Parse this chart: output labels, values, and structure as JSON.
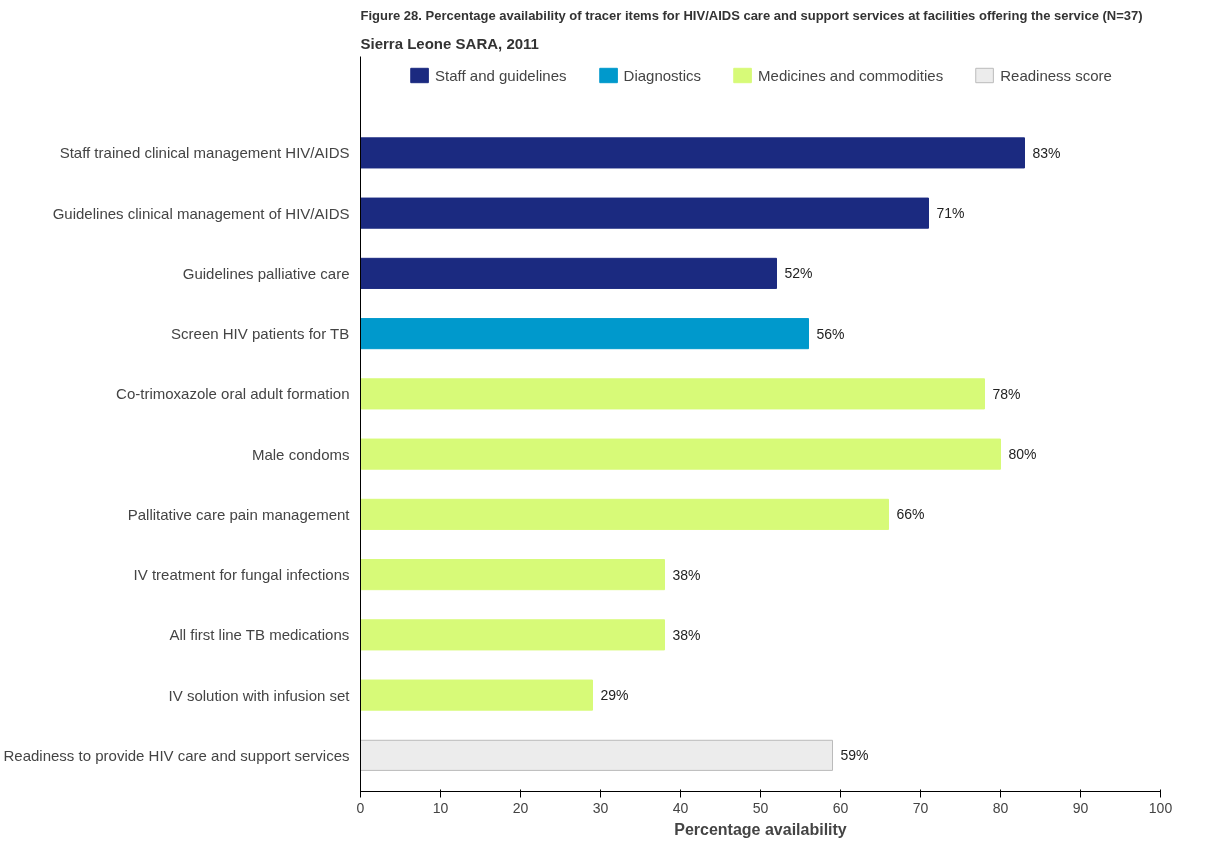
{
  "chart_data": {
    "type": "bar",
    "orientation": "horizontal",
    "title": "Figure 28.   Percentage availability of tracer items for HIV/AIDS care and support services at facilities offering the service (N=37)",
    "subtitle": "Sierra Leone SARA, 2011",
    "xlabel": "Percentage availability",
    "categories": [
      "Staff trained clinical management HIV/AIDS",
      "Guidelines clinical management of HIV/AIDS",
      "Guidelines palliative care",
      "Screen HIV patients for TB",
      "Co-trimoxazole oral adult formation",
      "Male condoms",
      "Pallitative care pain management",
      "IV treatment for fungal infections",
      "All first line TB medications",
      "IV solution with infusion set",
      "Readiness to provide HIV care and support services"
    ],
    "series": [
      {
        "name": "Staff and guidelines",
        "color": "#1b2a80",
        "values": [
          83,
          71,
          52,
          null,
          null,
          null,
          null,
          null,
          null,
          null,
          null
        ],
        "value_labels": [
          "83%",
          "71%",
          "52%",
          null,
          null,
          null,
          null,
          null,
          null,
          null,
          null
        ]
      },
      {
        "name": "Diagnostics",
        "color": "#0099cc",
        "values": [
          null,
          null,
          null,
          56,
          null,
          null,
          null,
          null,
          null,
          null,
          null
        ],
        "value_labels": [
          null,
          null,
          null,
          "56%",
          null,
          null,
          null,
          null,
          null,
          null,
          null
        ]
      },
      {
        "name": "Medicines and commodities",
        "color": "#d7fa78",
        "values": [
          null,
          null,
          null,
          null,
          78,
          80,
          66,
          38,
          38,
          29,
          null
        ],
        "value_labels": [
          null,
          null,
          null,
          null,
          "78%",
          "80%",
          "66%",
          "38%",
          "38%",
          "29%",
          null
        ]
      },
      {
        "name": "Readiness score",
        "color": "#ececec",
        "values": [
          null,
          null,
          null,
          null,
          null,
          null,
          null,
          null,
          null,
          null,
          59
        ],
        "value_labels": [
          null,
          null,
          null,
          null,
          null,
          null,
          null,
          null,
          null,
          null,
          "59%"
        ]
      }
    ],
    "xlim": [
      0,
      100
    ],
    "xticks": [
      0,
      10,
      20,
      30,
      40,
      50,
      60,
      70,
      80,
      90,
      100
    ],
    "grid": false,
    "legend": "top"
  }
}
